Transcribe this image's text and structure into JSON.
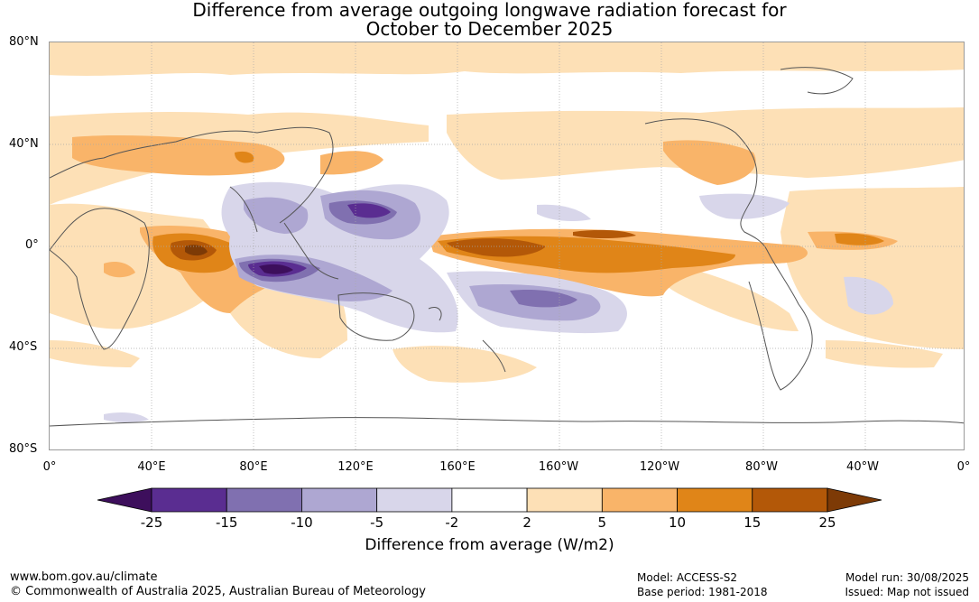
{
  "title_line1": "Difference from average outgoing longwave radiation forecast for",
  "title_line2": "October to December 2025",
  "lat_labels": [
    "80°N",
    "40°N",
    "0°",
    "40°S",
    "80°S"
  ],
  "lon_labels": [
    "0°",
    "40°E",
    "80°E",
    "120°E",
    "160°E",
    "160°W",
    "120°W",
    "80°W",
    "40°W",
    "0°"
  ],
  "colorbar": {
    "ticks": [
      "-25",
      "-15",
      "-10",
      "-5",
      "-2",
      "2",
      "5",
      "10",
      "15",
      "25"
    ],
    "colors": [
      "#3d0f5c",
      "#5a2d91",
      "#8070b0",
      "#aea7d2",
      "#d8d6ea",
      "#ffffff",
      "#fde0b6",
      "#f9b469",
      "#e08518",
      "#b35808",
      "#7d3a06"
    ],
    "title": "Difference from average (W/m2)"
  },
  "footer": {
    "website": "www.bom.gov.au/climate",
    "copyright": "© Commonwealth of Australia 2025, Australian Bureau of Meteorology",
    "model": "Model: ACCESS-S2",
    "base_period": "Base period: 1981-2018",
    "model_run": "Model run: 30/08/2025",
    "issued": "Issued: Map not issued"
  }
}
